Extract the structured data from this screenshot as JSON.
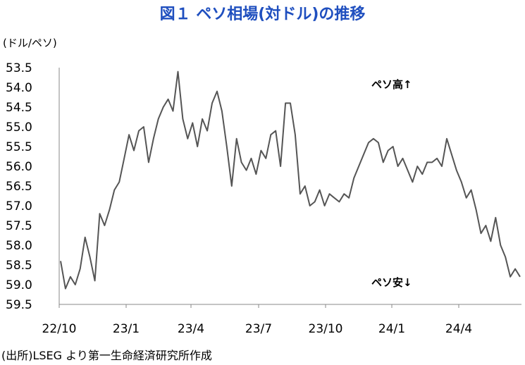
{
  "chart_data": {
    "type": "line",
    "title": "図１ ペソ相場(対ドル)の推移",
    "ylabel": "(ドル/ペソ)",
    "source": "(出所)LSEG より第一生命経済研究所作成",
    "y_inverted": true,
    "ylim": [
      53.5,
      59.5
    ],
    "y_ticks": [
      "53.5",
      "54.0",
      "54.5",
      "55.0",
      "55.5",
      "56.0",
      "56.5",
      "57.0",
      "57.5",
      "58.0",
      "58.5",
      "59.0",
      "59.5"
    ],
    "x_ticks": [
      "22/10",
      "23/1",
      "23/4",
      "23/7",
      "23/10",
      "24/1",
      "24/4"
    ],
    "grid": false,
    "annotations": {
      "top": "ペソ高↑",
      "bottom": "ペソ安↓"
    },
    "line_color": "#555555",
    "series": [
      {
        "values": [
          58.4,
          59.1,
          58.8,
          59.0,
          58.6,
          57.8,
          58.3,
          58.9,
          57.2,
          57.5,
          57.1,
          56.6,
          56.4,
          55.8,
          55.2,
          55.6,
          55.1,
          55.0,
          55.9,
          55.3,
          54.8,
          54.5,
          54.3,
          54.6,
          53.6,
          54.8,
          55.3,
          54.9,
          55.5,
          54.8,
          55.1,
          54.4,
          54.1,
          54.6,
          55.5,
          56.5,
          55.3,
          55.9,
          56.1,
          55.8,
          56.2,
          55.6,
          55.8,
          55.2,
          55.1,
          56.0,
          54.4,
          54.4,
          55.2,
          56.7,
          56.5,
          57.0,
          56.9,
          56.6,
          57.0,
          56.7,
          56.8,
          56.9,
          56.7,
          56.8,
          56.3,
          56.0,
          55.7,
          55.4,
          55.3,
          55.4,
          55.9,
          55.6,
          55.5,
          56.0,
          55.8,
          56.1,
          56.4,
          56.0,
          56.2,
          55.9,
          55.9,
          55.8,
          56.0,
          55.3,
          55.7,
          56.1,
          56.4,
          56.8,
          56.6,
          57.1,
          57.7,
          57.5,
          57.9,
          57.3,
          58.0,
          58.3,
          58.8,
          58.6,
          58.8
        ]
      }
    ]
  }
}
